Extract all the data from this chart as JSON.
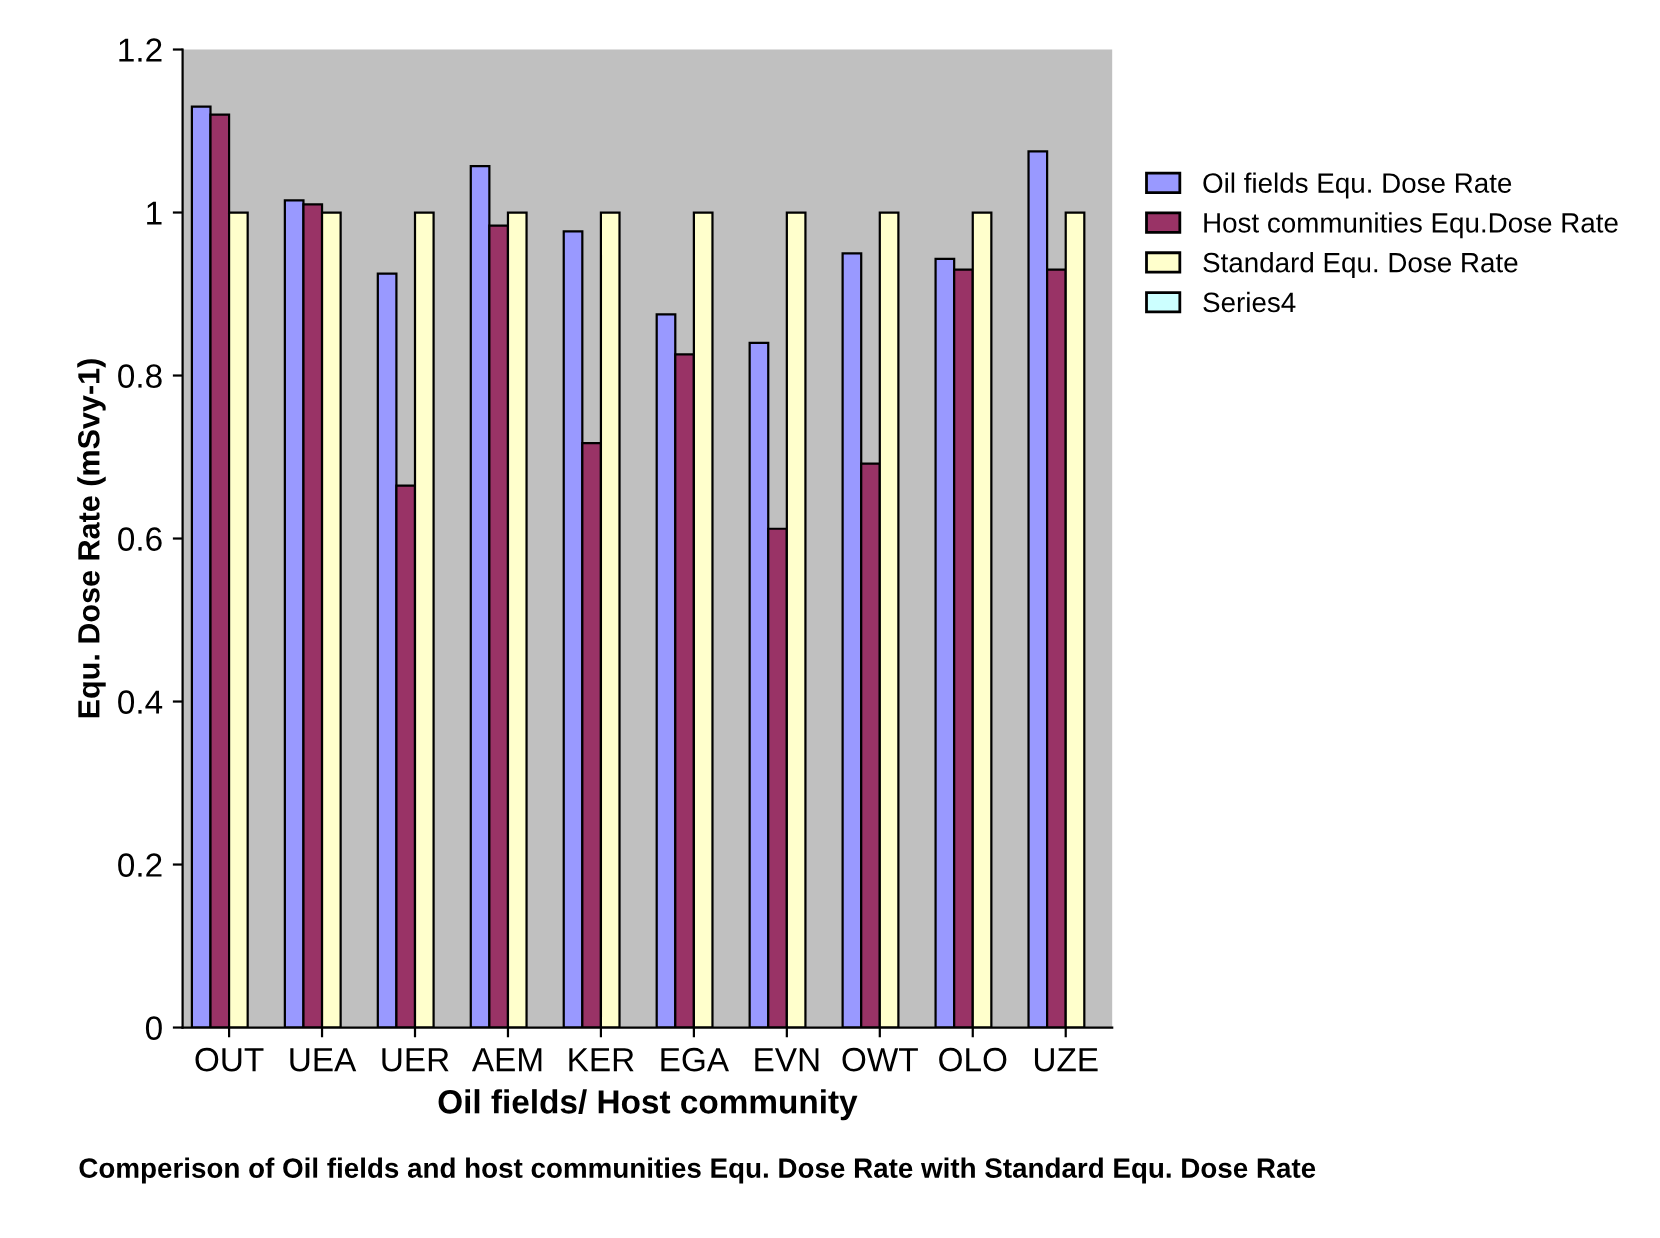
{
  "chart_data": {
    "type": "bar",
    "xlabel": "Oil fields/ Host community",
    "ylabel": "Equ. Dose Rate (mSvy-1)",
    "categories": [
      "OUT",
      "UEA",
      "UER",
      "AEM",
      "KER",
      "EGA",
      "EVN",
      "OWT",
      "OLO",
      "UZE"
    ],
    "series": [
      {
        "name": "Oil fields Equ. Dose Rate",
        "color": "#9999ff",
        "values": [
          1.13,
          1.015,
          0.925,
          1.057,
          0.977,
          0.875,
          0.84,
          0.95,
          0.943,
          1.075
        ]
      },
      {
        "name": "Host communities Equ.Dose Rate",
        "color": "#993366",
        "values": [
          1.12,
          1.01,
          0.665,
          0.984,
          0.717,
          0.826,
          0.612,
          0.692,
          0.93,
          0.93
        ]
      },
      {
        "name": "Standard Equ. Dose Rate",
        "color": "#ffffcc",
        "values": [
          1,
          1,
          1,
          1,
          1,
          1,
          1,
          1,
          1,
          1
        ]
      },
      {
        "name": "Series4",
        "color": "#ccffff",
        "values": [
          null,
          null,
          null,
          null,
          null,
          null,
          null,
          null,
          null,
          null
        ]
      }
    ],
    "ylim": [
      0,
      1.2
    ],
    "yticks": [
      0,
      0.2,
      0.4,
      0.6,
      0.8,
      1,
      1.2
    ],
    "grid": false,
    "legend": "right",
    "annotations": [
      "Comperison of Oil fields and host communities Equ. Dose Rate with Standard Equ. Dose Rate"
    ]
  }
}
